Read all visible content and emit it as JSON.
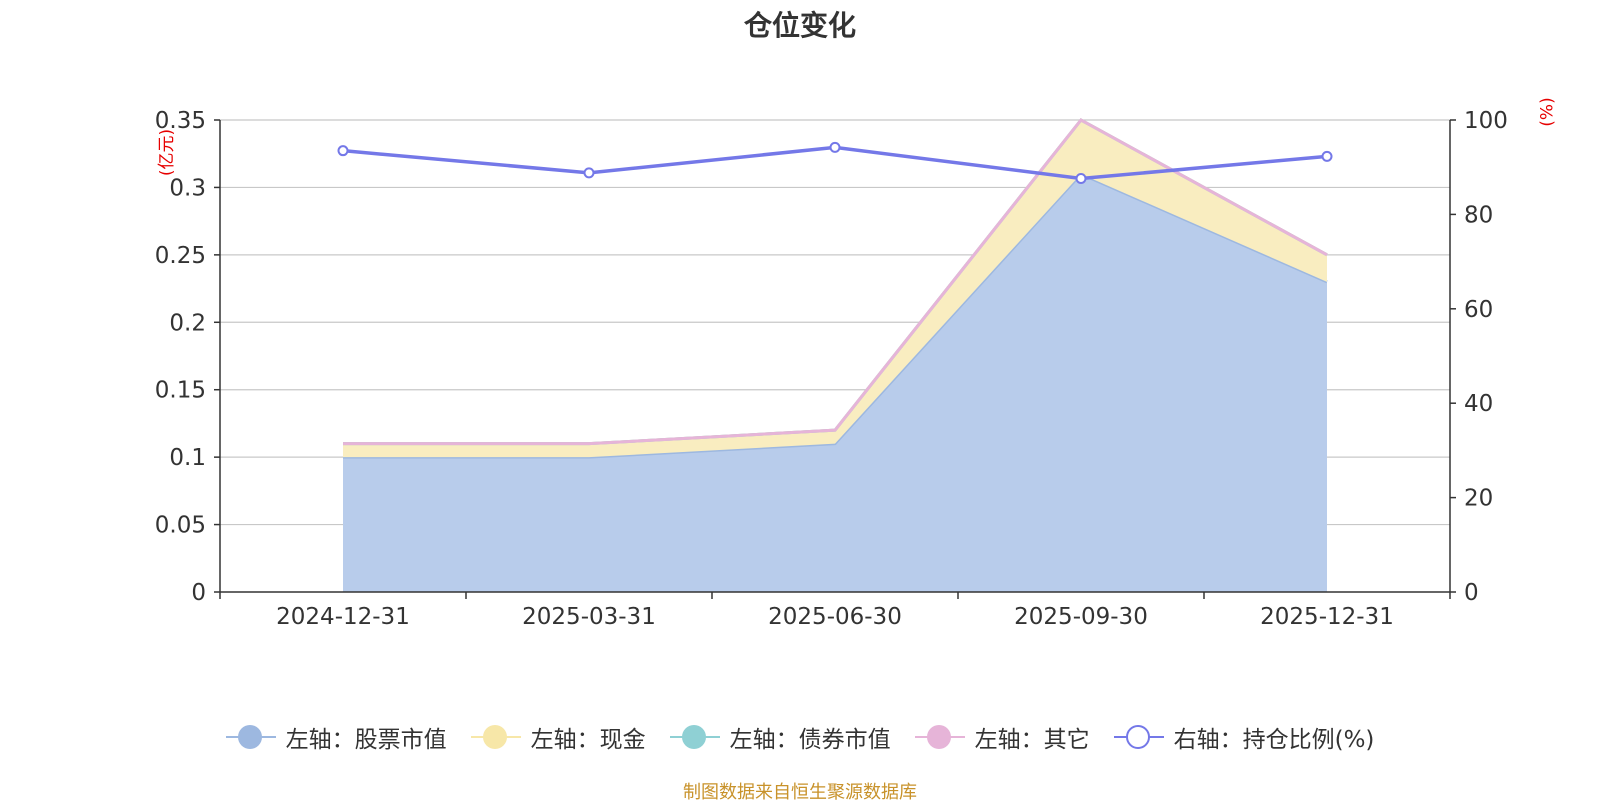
{
  "chart_data": {
    "type": "area",
    "title": "仓位变化",
    "x": [
      "2024-12-31",
      "2025-03-31",
      "2025-06-30",
      "2025-09-30",
      "2025-12-31"
    ],
    "left_unit": "(亿元)",
    "right_unit": "(%)",
    "left_axis": {
      "range": [
        0,
        0.35
      ],
      "ticks": [
        "0",
        "0.05",
        "0.1",
        "0.15",
        "0.2",
        "0.25",
        "0.3",
        "0.35"
      ]
    },
    "right_axis": {
      "range": [
        0,
        100
      ],
      "ticks": [
        "0",
        "20",
        "40",
        "60",
        "80",
        "100"
      ]
    },
    "grid": true,
    "stacked": true,
    "series": [
      {
        "name": "左轴：股票市值",
        "axis": "left",
        "color": "#9db8e0",
        "fill": "#b8cceb",
        "values": [
          0.1,
          0.1,
          0.11,
          0.31,
          0.23
        ]
      },
      {
        "name": "左轴：现金",
        "axis": "left",
        "color": "#f7e7a8",
        "fill": "#f9edc0",
        "values": [
          0.01,
          0.01,
          0.01,
          0.04,
          0.02
        ]
      },
      {
        "name": "左轴：债券市值",
        "axis": "left",
        "color": "#8fd0d4",
        "fill": "#a9dcdf",
        "values": [
          0,
          0,
          0,
          0,
          0
        ]
      },
      {
        "name": "左轴：其它",
        "axis": "left",
        "color": "#e6b4d8",
        "fill": "#efc9e4",
        "values": [
          0,
          0,
          0,
          0,
          0
        ]
      },
      {
        "name": "右轴：持仓比例(%)",
        "axis": "right",
        "color": "#7478e8",
        "values": [
          93.5,
          88.8,
          94.2,
          87.6,
          92.3
        ]
      }
    ],
    "legend_position": "bottom",
    "source": "制图数据来自恒生聚源数据库"
  }
}
